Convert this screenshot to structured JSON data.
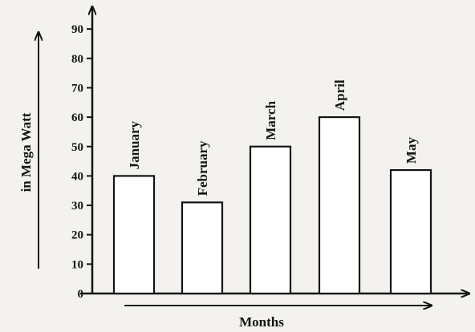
{
  "chart_data": {
    "type": "bar",
    "categories": [
      "January",
      "February",
      "March",
      "April",
      "May"
    ],
    "values": [
      40,
      31,
      50,
      60,
      42
    ],
    "ylabel": "in Mega Watt",
    "xlabel": "Months",
    "ylim": [
      0,
      90
    ],
    "yticks": [
      0,
      10,
      20,
      30,
      40,
      50,
      60,
      70,
      80,
      90
    ],
    "grid": false,
    "colors": {
      "bar_fill": "#ffffff",
      "stroke": "#141414"
    }
  }
}
